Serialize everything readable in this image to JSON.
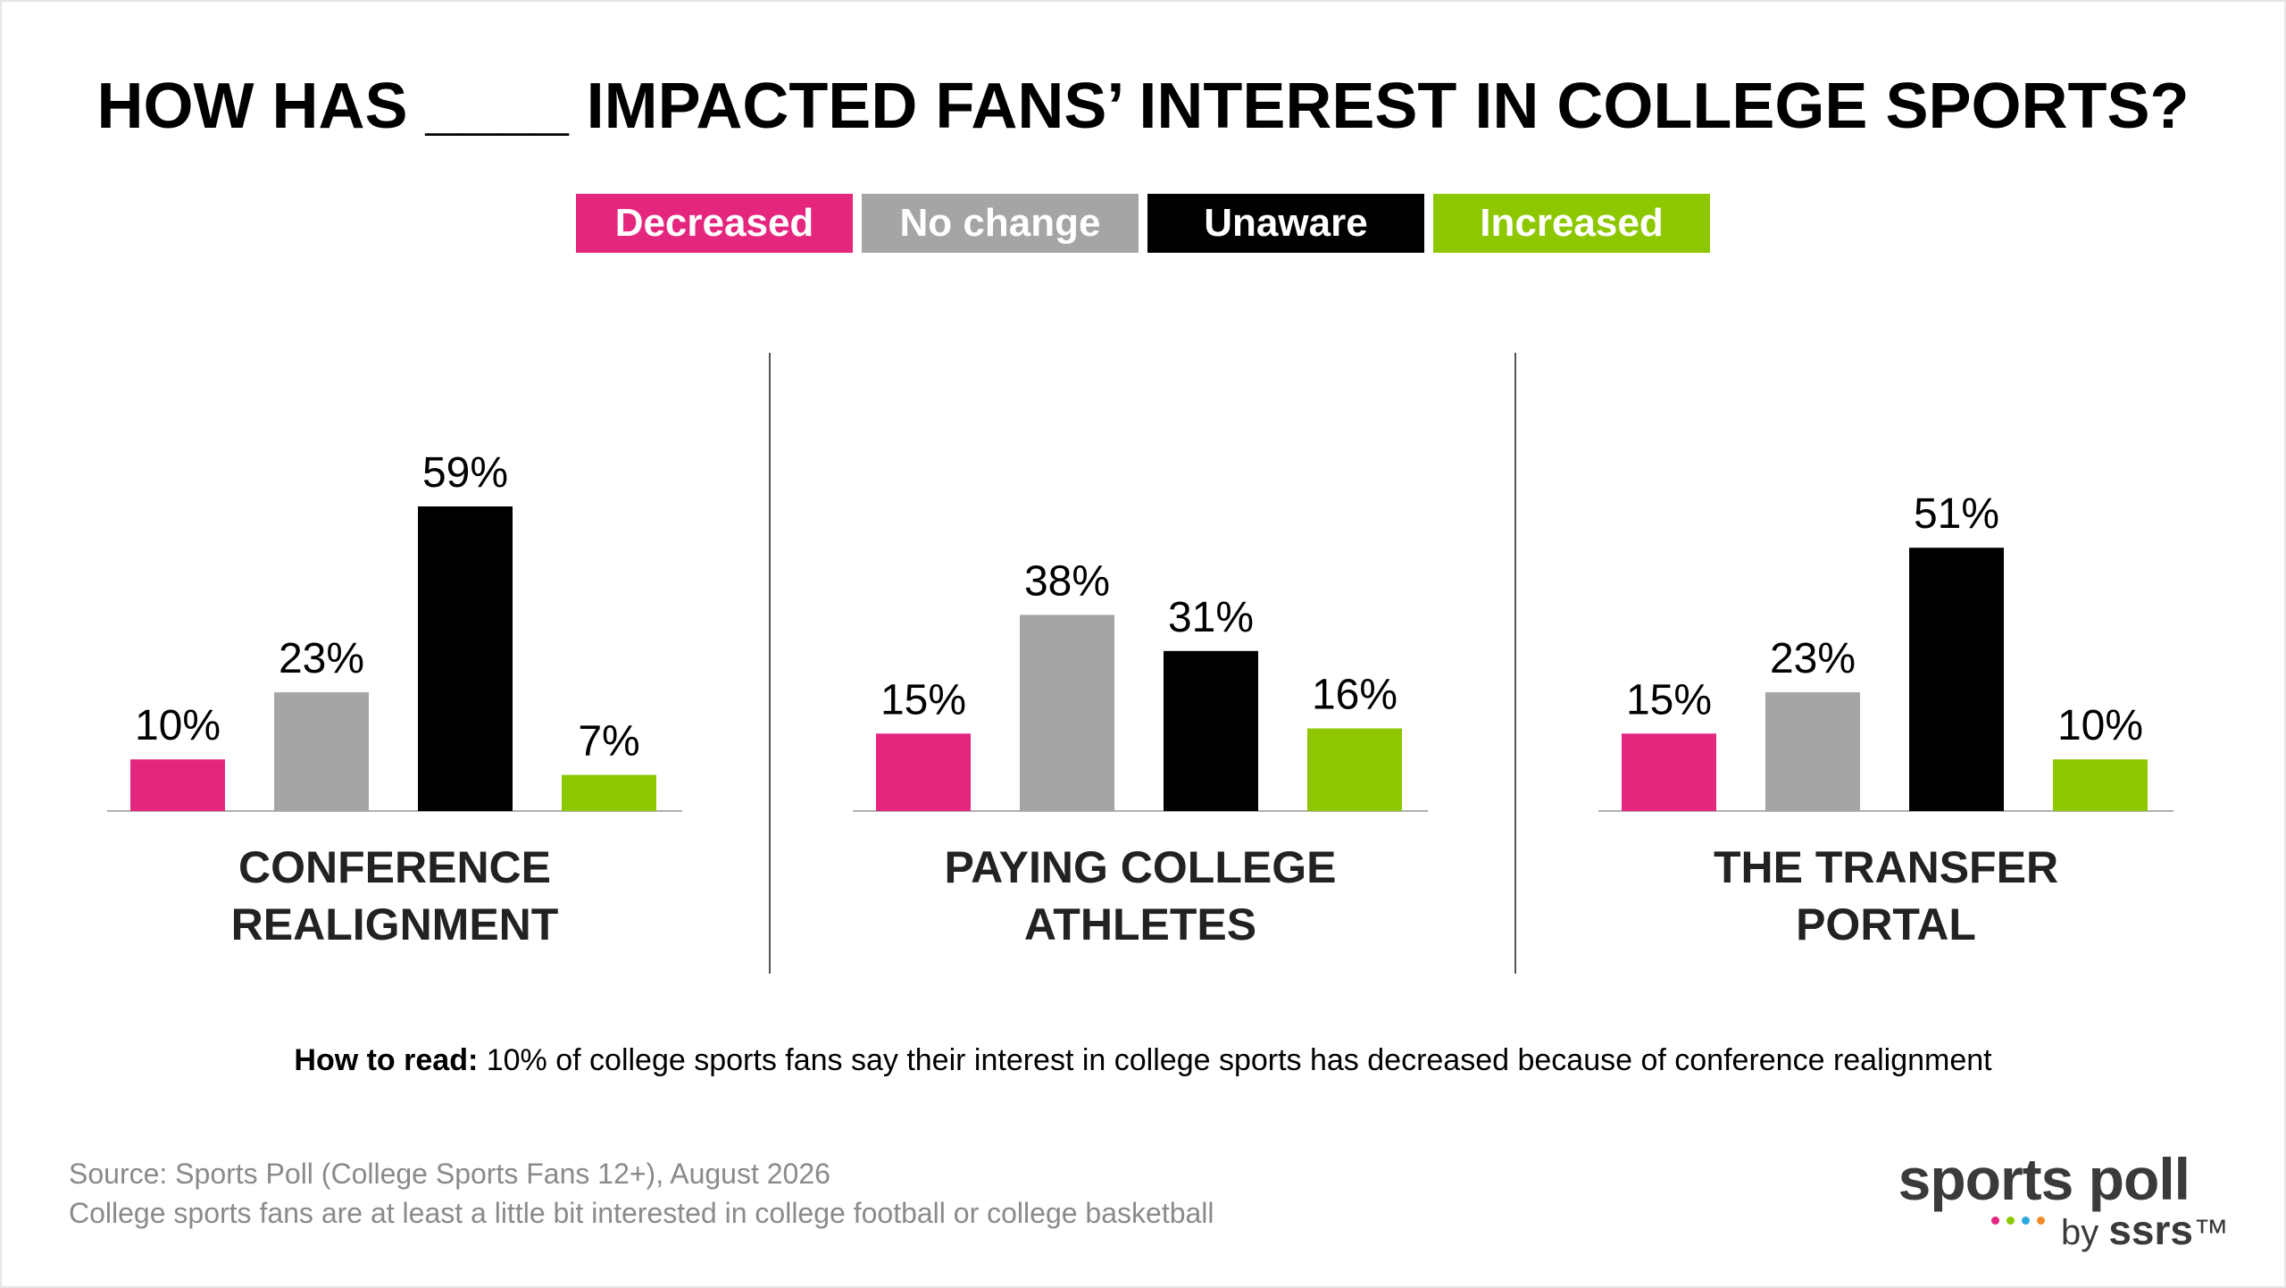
{
  "title": "HOW HAS ____ IMPACTED FANS’ INTEREST IN COLLEGE SPORTS?",
  "legend": [
    {
      "label": "Decreased",
      "color": "#e5267f"
    },
    {
      "label": "No change",
      "color": "#a5a5a5"
    },
    {
      "label": "Unaware",
      "color": "#000000"
    },
    {
      "label": "Increased",
      "color": "#8dc700"
    }
  ],
  "chart_data": [
    {
      "type": "bar",
      "title": [
        "CONFERENCE",
        "REALIGNMENT"
      ],
      "categories": [
        "Decreased",
        "No change",
        "Unaware",
        "Increased"
      ],
      "values": [
        10,
        23,
        59,
        7
      ],
      "labels": [
        "10%",
        "23%",
        "59%",
        "7%"
      ],
      "ylim": [
        0,
        60
      ]
    },
    {
      "type": "bar",
      "title": [
        "PAYING COLLEGE",
        "ATHLETES"
      ],
      "categories": [
        "Decreased",
        "No change",
        "Unaware",
        "Increased"
      ],
      "values": [
        15,
        38,
        31,
        16
      ],
      "labels": [
        "15%",
        "38%",
        "31%",
        "16%"
      ],
      "ylim": [
        0,
        60
      ]
    },
    {
      "type": "bar",
      "title": [
        "THE TRANSFER",
        "PORTAL"
      ],
      "categories": [
        "Decreased",
        "No change",
        "Unaware",
        "Increased"
      ],
      "values": [
        15,
        23,
        51,
        10
      ],
      "labels": [
        "15%",
        "23%",
        "51%",
        "10%"
      ],
      "ylim": [
        0,
        60
      ]
    }
  ],
  "howto": {
    "bold": "How to read:",
    "text": " 10% of college sports fans say their interest in college sports has decreased because of conference realignment"
  },
  "source": {
    "line1": "Source: Sports Poll (College Sports Fans 12+), August 2026",
    "line2": "College sports fans are at least a little bit interested in college football or college basketball"
  },
  "logo": {
    "main": "sports poll",
    "by": "by",
    "brand": "ssrs",
    "tm": "™",
    "dot_colors": [
      "#e5267f",
      "#8dc700",
      "#2aa8e0",
      "#f28c28"
    ]
  }
}
